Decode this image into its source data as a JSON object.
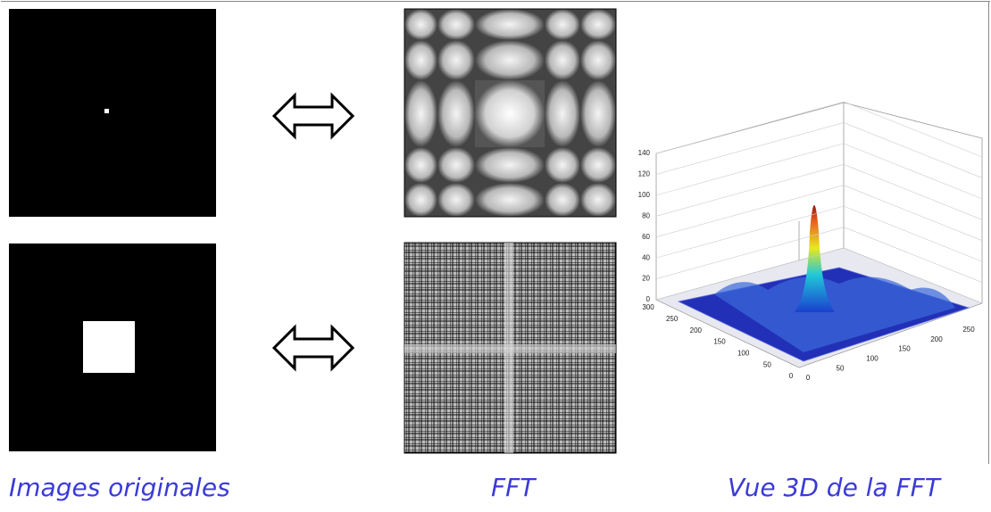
{
  "captions": [
    "Images originales",
    "FFT",
    "Vue 3D de la FFT"
  ],
  "plot": {
    "z_ticks": [
      0,
      20,
      40,
      60,
      80,
      100,
      120,
      140
    ],
    "y_ticks": [
      300,
      250,
      200,
      150,
      100,
      50,
      0
    ],
    "x_ticks": [
      0,
      50,
      100,
      150,
      200,
      250
    ]
  }
}
